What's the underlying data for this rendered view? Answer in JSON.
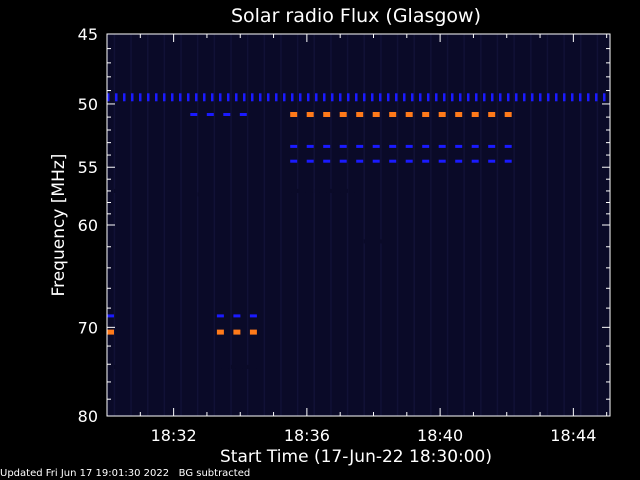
{
  "chart_data": {
    "type": "heatmap",
    "title": "Solar radio Flux (Glasgow)",
    "xlabel": "Start Time (17-Jun-22 18:30:00)",
    "ylabel": "Frequency [MHz]",
    "x_unit": "minutes after 18:30:00",
    "xlim": [
      0,
      15.1
    ],
    "ylim": [
      45,
      80
    ],
    "y_scale": "log",
    "x_ticks": [
      {
        "minute": 2,
        "label": "18:32"
      },
      {
        "minute": 6,
        "label": "18:36"
      },
      {
        "minute": 10,
        "label": "18:40"
      },
      {
        "minute": 14,
        "label": "18:44"
      }
    ],
    "y_ticks": [
      {
        "value": 45,
        "label": "45"
      },
      {
        "value": 50,
        "label": "50"
      },
      {
        "value": 55,
        "label": "55"
      },
      {
        "value": 60,
        "label": "60"
      },
      {
        "value": 70,
        "label": "70"
      },
      {
        "value": 80,
        "label": "80"
      }
    ],
    "background_color": "#0a0a28",
    "colors": {
      "low": "#0a0a28",
      "medium": "#1a1aff",
      "high": "#ff7a1a"
    },
    "emission_bands": [
      {
        "level": "medium",
        "freq_mhz": 49.5,
        "t_start": 0.0,
        "t_end": 15.1
      },
      {
        "level": "high",
        "freq_mhz": 50.8,
        "t_start": 5.5,
        "t_end": 12.6
      },
      {
        "level": "medium",
        "freq_mhz": 50.8,
        "t_start": 2.5,
        "t_end": 4.6
      },
      {
        "level": "medium",
        "freq_mhz": 53.3,
        "t_start": 5.5,
        "t_end": 12.6
      },
      {
        "level": "medium",
        "freq_mhz": 54.5,
        "t_start": 5.5,
        "t_end": 12.6
      },
      {
        "level": "medium",
        "freq_mhz": 68.8,
        "t_start": 0.0,
        "t_end": 0.4
      },
      {
        "level": "high",
        "freq_mhz": 70.5,
        "t_start": 0.0,
        "t_end": 0.4
      },
      {
        "level": "medium",
        "freq_mhz": 68.8,
        "t_start": 3.3,
        "t_end": 4.5
      },
      {
        "level": "high",
        "freq_mhz": 70.5,
        "t_start": 3.3,
        "t_end": 4.5
      },
      {
        "level": "low",
        "freq_mhz": 57.0,
        "t_start": 0.0,
        "t_end": 0.5
      },
      {
        "level": "low",
        "freq_mhz": 57.3,
        "t_start": 2.3,
        "t_end": 3.0
      },
      {
        "level": "low",
        "freq_mhz": 57.0,
        "t_start": 5.4,
        "t_end": 7.5
      },
      {
        "level": "low",
        "freq_mhz": 61.5,
        "t_start": 1.8,
        "t_end": 2.2
      },
      {
        "level": "low",
        "freq_mhz": 61.5,
        "t_start": 7.5,
        "t_end": 8.5
      },
      {
        "level": "low",
        "freq_mhz": 74.3,
        "t_start": 3.3,
        "t_end": 4.5
      },
      {
        "level": "low",
        "freq_mhz": 74.3,
        "t_start": 0.0,
        "t_end": 0.4
      }
    ]
  },
  "footer": {
    "updated": "Updated Fri Jun 17 19:01:30 2022",
    "note": "BG subtracted"
  }
}
